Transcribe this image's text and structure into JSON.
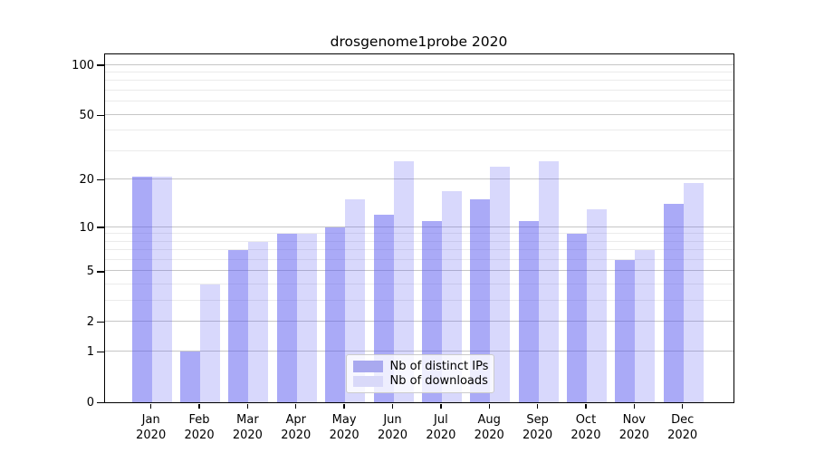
{
  "title": "drosgenome1probe 2020",
  "chart_data": {
    "type": "bar",
    "title": "drosgenome1probe 2020",
    "categories": [
      "Jan 2020",
      "Feb 2020",
      "Mar 2020",
      "Apr 2020",
      "May 2020",
      "Jun 2020",
      "Jul 2020",
      "Aug 2020",
      "Sep 2020",
      "Oct 2020",
      "Nov 2020",
      "Dec 2020"
    ],
    "x_tick_months": [
      "Jan",
      "Feb",
      "Mar",
      "Apr",
      "May",
      "Jun",
      "Jul",
      "Aug",
      "Sep",
      "Oct",
      "Nov",
      "Dec"
    ],
    "x_tick_year": "2020",
    "series": [
      {
        "name": "Nb of distinct IPs",
        "bar_color": "rgba(85,85,240,0.50)",
        "legend_color": "#a9a9ef",
        "values": [
          21,
          1,
          7,
          9,
          10,
          12,
          11,
          15,
          11,
          9,
          6,
          14
        ]
      },
      {
        "name": "Nb of downloads",
        "bar_color": "rgba(85,85,240,0.23)",
        "legend_color": "#d9d9f9",
        "values": [
          21,
          4,
          8,
          9,
          15,
          26,
          17,
          24,
          26,
          13,
          7,
          19
        ]
      }
    ],
    "xlabel": "",
    "ylabel": "",
    "y_scale": "log1p",
    "y_tick_labels": [
      "0",
      "1",
      "2",
      "5",
      "10",
      "20",
      "50",
      "100"
    ],
    "y_tick_values": [
      0,
      1,
      2,
      5,
      10,
      20,
      50,
      100
    ],
    "y_minor_tick_values": [
      3,
      4,
      6,
      7,
      8,
      9,
      30,
      40,
      60,
      70,
      80,
      90
    ],
    "ylim": [
      0,
      118
    ],
    "grid": "on",
    "legend_position": "bottom-center",
    "grid_major_color": "#c6c6c6",
    "grid_minor_color": "#ebebeb"
  }
}
